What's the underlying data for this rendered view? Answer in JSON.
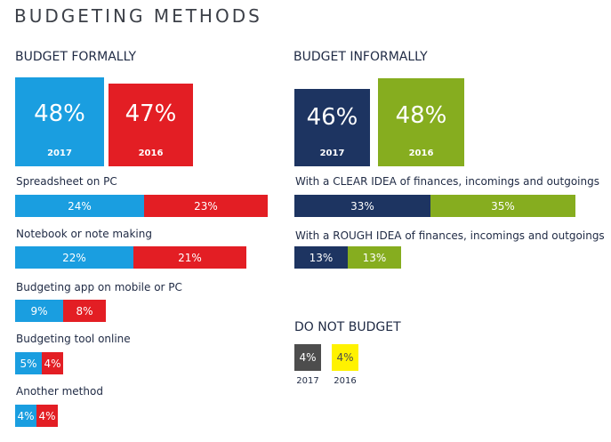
{
  "title": "BUDGETING METHODS",
  "chart_data": [
    {
      "type": "bar",
      "id": "formal",
      "title": "BUDGET FORMALLY",
      "totals": [
        {
          "year": "2017",
          "value": 48,
          "label": "48%",
          "color": "#1a9ee0"
        },
        {
          "year": "2016",
          "value": 47,
          "label": "47%",
          "color": "#e31e24"
        }
      ],
      "categories": [
        "Spreadsheet on PC",
        "Notebook or note making",
        "Budgeting app on mobile or PC",
        "Budgeting tool online",
        "Another method"
      ],
      "series": [
        {
          "year": "2017",
          "color": "#1a9ee0",
          "values": [
            24,
            22,
            9,
            5,
            4
          ],
          "labels": [
            "24%",
            "22%",
            "9%",
            "5%",
            "4%"
          ]
        },
        {
          "year": "2016",
          "color": "#e31e24",
          "values": [
            23,
            21,
            8,
            4,
            4
          ],
          "labels": [
            "23%",
            "21%",
            "8%",
            "4%",
            "4%"
          ]
        }
      ]
    },
    {
      "type": "bar",
      "id": "informal",
      "title": "BUDGET INFORMALLY",
      "totals": [
        {
          "year": "2017",
          "value": 46,
          "label": "46%",
          "color": "#1d3461"
        },
        {
          "year": "2016",
          "value": 48,
          "label": "48%",
          "color": "#86ad1f"
        }
      ],
      "categories": [
        "With a CLEAR IDEA of finances, incomings and outgoings",
        "With a ROUGH IDEA of finances, incomings and outgoings"
      ],
      "series": [
        {
          "year": "2017",
          "color": "#1d3461",
          "values": [
            33,
            13
          ],
          "labels": [
            "33%",
            "13%"
          ]
        },
        {
          "year": "2016",
          "color": "#86ad1f",
          "values": [
            35,
            13
          ],
          "labels": [
            "35%",
            "13%"
          ]
        }
      ]
    },
    {
      "type": "bar",
      "id": "none",
      "title": "DO NOT BUDGET",
      "totals": [
        {
          "year": "2017",
          "value": 4,
          "label": "4%",
          "color": "#4d4d4d",
          "text_color": "#ffffff"
        },
        {
          "year": "2016",
          "value": 4,
          "label": "4%",
          "color": "#fff200",
          "text_color": "#4d4d4d"
        }
      ]
    }
  ]
}
